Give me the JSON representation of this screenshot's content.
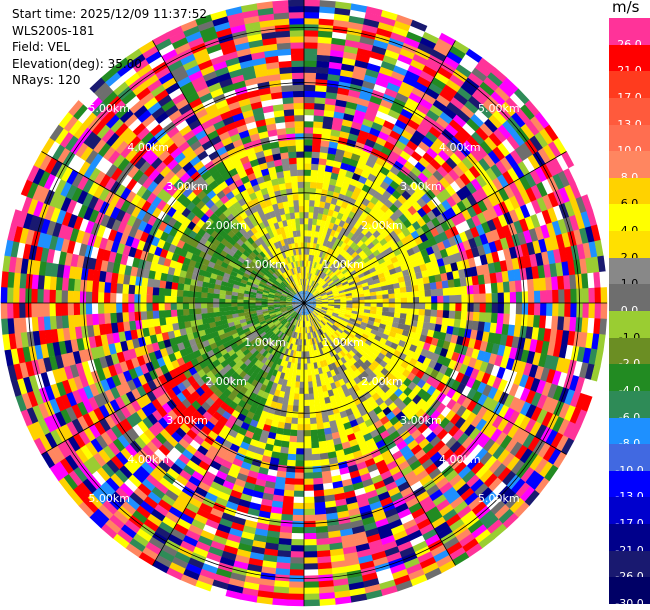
{
  "header": {
    "start_time": "Start time: 2025/12/09 11:37:52",
    "site": "WLS200s-181",
    "field": "Field: VEL",
    "elevation": "Elevation(deg): 35.00",
    "nrays": "NRays: 120"
  },
  "colorbar": {
    "unit": "m/s",
    "levels": [
      {
        "label": "26.0",
        "color": "#ff3399"
      },
      {
        "label": "21.0",
        "color": "#ff0000"
      },
      {
        "label": "17.0",
        "color": "#ff3b1e"
      },
      {
        "label": "13.0",
        "color": "#ff5a3c"
      },
      {
        "label": "10.0",
        "color": "#ff6e50"
      },
      {
        "label": "8.0",
        "color": "#ff8660"
      },
      {
        "label": "6.0",
        "color": "#ffd200"
      },
      {
        "label": "4.0",
        "color": "#ffff00"
      },
      {
        "label": "2.0",
        "color": "#ffe000"
      },
      {
        "label": "1.0",
        "color": "#888888"
      },
      {
        "label": "0.0",
        "color": "#6e6e6e"
      },
      {
        "label": "-1.0",
        "color": "#9acd32"
      },
      {
        "label": "-2.0",
        "color": "#6b8e23"
      },
      {
        "label": "-4.0",
        "color": "#228b22"
      },
      {
        "label": "-6.0",
        "color": "#2e8b57"
      },
      {
        "label": "-8.0",
        "color": "#1e90ff"
      },
      {
        "label": "-10.0",
        "color": "#4169e1"
      },
      {
        "label": "-13.0",
        "color": "#0000ff"
      },
      {
        "label": "-17.0",
        "color": "#0000cd"
      },
      {
        "label": "-21.0",
        "color": "#00008b"
      },
      {
        "label": "-26.0",
        "color": "#191970"
      },
      {
        "label": "-30.0",
        "color": "#000066"
      }
    ]
  },
  "chart_data": {
    "type": "ppi-scan",
    "field": "VEL",
    "rings_km": [
      {
        "label": "1.00km",
        "radius": 1
      },
      {
        "label": "2.00km",
        "radius": 2
      },
      {
        "label": "3.00km",
        "radius": 3
      },
      {
        "label": "4.00km",
        "radius": 4
      },
      {
        "label": "5.00km",
        "radius": 5
      }
    ],
    "max_range_km": 5.5,
    "azimuth_spokes": 12
  }
}
